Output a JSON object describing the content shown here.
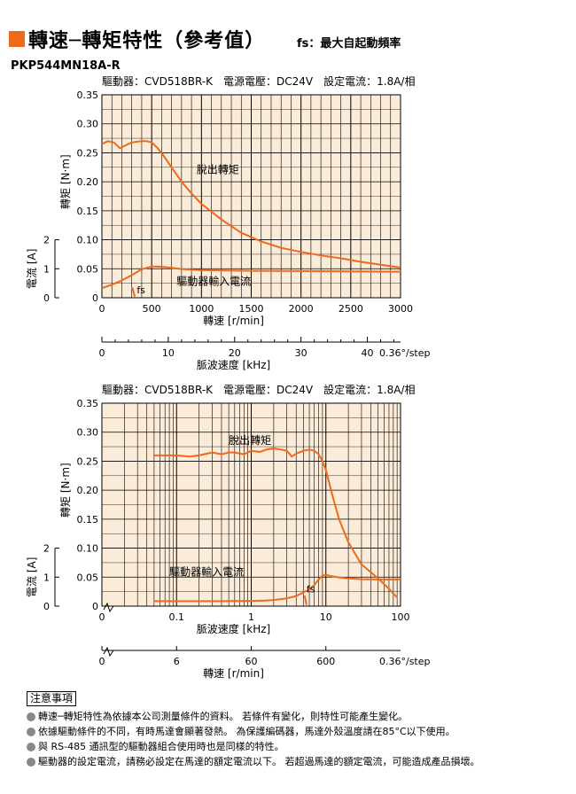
{
  "header": {
    "title": "轉速─轉矩特性（參考值）",
    "subtitle": "fs：最大自起動頻率",
    "model": "PKP544MN18A-R"
  },
  "colors": {
    "accent": "#ee6a1b",
    "curve": "#ee6a1b",
    "plot_bg": "#fbebd9",
    "grid": "#000000"
  },
  "notes": {
    "title": "注意事項",
    "items": [
      "轉速─轉矩特性為依據本公司測量條件的資料。 若條件有變化，則特性可能產生變化。",
      "依據驅動條件的不同，有時馬達會顯著發熱。 為保護編碼器，馬達外殼溫度請在85°C以下使用。",
      "與 RS-485 通訊型的驅動器組合使用時也是同樣的特性。",
      "驅動器的設定電流，請務必設定在馬達的額定電流以下。 若超過馬達的額定電流，可能造成產品損壞。"
    ]
  },
  "chart_data": [
    {
      "type": "line",
      "condition": "驅動器：CVD518BR-K　電源電壓：DC24V　設定電流：1.8A/相",
      "xscale": "linear",
      "xlabel": "轉速 [r/min]",
      "xlim": [
        0,
        3000
      ],
      "xticks": [
        0,
        500,
        1000,
        1500,
        2000,
        2500,
        3000
      ],
      "ylabel": "轉矩 [N·m]",
      "ylim": [
        0,
        0.35
      ],
      "yticks": [
        "0",
        "0.05",
        "0.10",
        "0.15",
        "0.20",
        "0.25",
        "0.30",
        "0.35"
      ],
      "y2label": "電流 [A]",
      "y2lim": [
        0,
        2
      ],
      "y2ticks": [
        "0",
        "1",
        "2"
      ],
      "secondary_axis": {
        "label": "脈波速度 [kHz]",
        "ticks": [
          "0",
          "10",
          "20",
          "30",
          "40"
        ],
        "tick_values_kHz": [
          0,
          10,
          20,
          30,
          40
        ],
        "unit_label": "0.36°/step"
      },
      "grid": true,
      "series": [
        {
          "name": "脫出轉矩",
          "axis": "torque",
          "x": [
            0,
            60,
            120,
            180,
            240,
            300,
            400,
            450,
            500,
            560,
            620,
            700,
            800,
            900,
            1000,
            1200,
            1400,
            1600,
            1800,
            2000,
            2200,
            2400,
            2600,
            2800,
            3000
          ],
          "y": [
            0.265,
            0.27,
            0.268,
            0.258,
            0.263,
            0.268,
            0.27,
            0.27,
            0.268,
            0.258,
            0.245,
            0.225,
            0.2,
            0.18,
            0.162,
            0.135,
            0.112,
            0.097,
            0.086,
            0.079,
            0.073,
            0.068,
            0.062,
            0.057,
            0.052
          ]
        },
        {
          "name": "驅動器輸入電流",
          "axis": "current",
          "x": [
            0,
            100,
            200,
            300,
            400,
            500,
            600,
            700,
            800,
            1000,
            1500,
            2000,
            2500,
            3000
          ],
          "y": [
            0.33,
            0.45,
            0.6,
            0.78,
            0.98,
            1.08,
            1.07,
            1.03,
            0.99,
            0.95,
            0.93,
            0.92,
            0.91,
            0.9
          ]
        },
        {
          "name": "fs",
          "axis": "torque",
          "x": [
            305,
            330
          ],
          "y": [
            0.018,
            0.002
          ]
        }
      ]
    },
    {
      "type": "line",
      "condition": "驅動器：CVD518BR-K　電源電壓：DC24V　設定電流：1.8A/相",
      "xscale": "log",
      "xlabel": "脈波速度 [kHz]",
      "xlim": [
        0.01,
        100
      ],
      "xticks": [
        "0",
        "0.1",
        "1",
        "10",
        "100"
      ],
      "xtick_values_kHz": [
        0.1,
        1,
        10,
        100
      ],
      "ylabel": "轉矩 [N·m]",
      "ylim": [
        0,
        0.35
      ],
      "yticks": [
        "0",
        "0.05",
        "0.10",
        "0.15",
        "0.20",
        "0.25",
        "0.30",
        "0.35"
      ],
      "y2label": "電流 [A]",
      "y2lim": [
        0,
        2
      ],
      "y2ticks": [
        "0",
        "1",
        "2"
      ],
      "secondary_axis": {
        "label": "轉速 [r/min]",
        "ticks": [
          "0",
          "6",
          "60",
          "600"
        ],
        "tick_values_kHz": [
          0.1,
          1,
          10
        ],
        "unit_label": "0.36°/step"
      },
      "grid": true,
      "series": [
        {
          "name": "脫出轉矩",
          "axis": "torque",
          "x": [
            0.05,
            0.08,
            0.1,
            0.15,
            0.2,
            0.3,
            0.4,
            0.5,
            0.6,
            0.8,
            1,
            1.3,
            1.6,
            2,
            2.5,
            3,
            3.5,
            4,
            5,
            6,
            7,
            8,
            9,
            10,
            12,
            15,
            20,
            30,
            50,
            70,
            90
          ],
          "y": [
            0.26,
            0.26,
            0.26,
            0.258,
            0.26,
            0.265,
            0.262,
            0.265,
            0.265,
            0.262,
            0.268,
            0.266,
            0.27,
            0.272,
            0.27,
            0.268,
            0.258,
            0.263,
            0.268,
            0.27,
            0.268,
            0.262,
            0.25,
            0.235,
            0.195,
            0.15,
            0.11,
            0.072,
            0.048,
            0.03,
            0.015
          ]
        },
        {
          "name": "驅動器輸入電流",
          "axis": "current",
          "x": [
            0.05,
            0.1,
            0.3,
            0.5,
            1,
            1.5,
            2,
            3,
            4,
            5,
            6,
            7,
            8,
            9,
            10,
            12,
            15,
            20,
            30,
            50,
            100
          ],
          "y": [
            0.17,
            0.17,
            0.17,
            0.175,
            0.18,
            0.19,
            0.21,
            0.27,
            0.35,
            0.47,
            0.58,
            0.73,
            0.92,
            1.05,
            1.08,
            1.03,
            0.99,
            0.96,
            0.93,
            0.92,
            0.92
          ]
        },
        {
          "name": "fs",
          "axis": "torque",
          "x": [
            5.2,
            5.5
          ],
          "y": [
            0.018,
            0.002
          ]
        }
      ]
    }
  ]
}
